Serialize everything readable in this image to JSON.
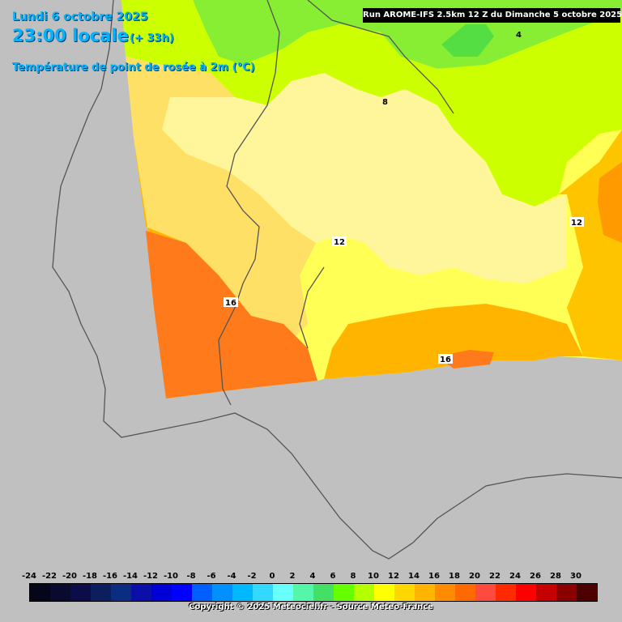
{
  "header": {
    "date": "Lundi 6 octobre 2025",
    "time": "23:00 locale",
    "offset": "(+ 33h)",
    "parameter": "Température de point de rosée à 2m (°C)",
    "run_info": "Run AROME-IFS 2.5km 12 Z du Dimanche 5 octobre 2025"
  },
  "isotherm_labels": [
    {
      "text": "4"
    },
    {
      "text": "8"
    },
    {
      "text": "12"
    },
    {
      "text": "12"
    },
    {
      "text": "16"
    },
    {
      "text": "16"
    }
  ],
  "legend": {
    "labels": [
      "-24",
      "-22",
      "-20",
      "-18",
      "-16",
      "-14",
      "-12",
      "-10",
      "-8",
      "-6",
      "-4",
      "-2",
      "0",
      "2",
      "4",
      "6",
      "8",
      "10",
      "12",
      "14",
      "16",
      "18",
      "20",
      "22",
      "24",
      "26",
      "28",
      "30"
    ],
    "colors": [
      "#06061a",
      "#0a0a2e",
      "#0c0c48",
      "#0d1e5e",
      "#0a2d82",
      "#0b0fa8",
      "#0000d6",
      "#0000ff",
      "#0060ff",
      "#0090ff",
      "#00b8ff",
      "#33d8ff",
      "#6affff",
      "#55f5aa",
      "#44e066",
      "#66ff00",
      "#b4ff00",
      "#ffff00",
      "#ffd700",
      "#ffb400",
      "#ff8c00",
      "#ff6a00",
      "#ff4a40",
      "#ff2a00",
      "#ff0000",
      "#c40000",
      "#8a0000",
      "#4c0000"
    ]
  },
  "copyright": "Copyright © 2025 Meteociel.fr - Source Meteo-France"
}
